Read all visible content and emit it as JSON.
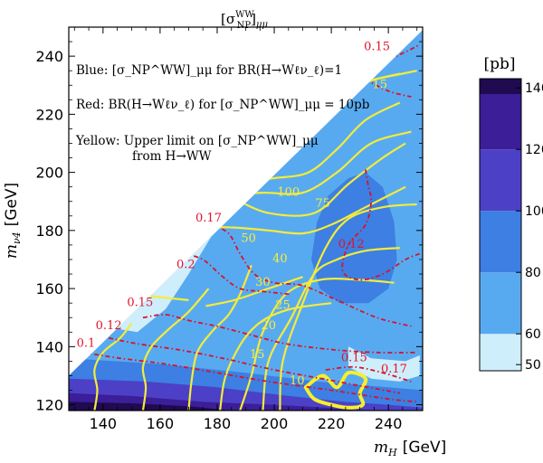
{
  "chart_data": {
    "type": "contour",
    "title": "[σ_NP^WW]_μμ",
    "title_main": "[σ",
    "title_sup": "WW",
    "title_sub": "NP",
    "title_tail": "]",
    "title_tail_sub": "μμ",
    "xlabel": "m_H [GeV]",
    "xlabel_var": "m",
    "xlabel_var_sub": "H",
    "xlabel_unit": "[GeV]",
    "ylabel": "m_ν4 [GeV]",
    "ylabel_var": "m",
    "ylabel_var_sub": "ν4",
    "ylabel_unit": "[GeV]",
    "xlim": [
      128,
      252
    ],
    "ylim": [
      118,
      250
    ],
    "xticks": [
      140,
      160,
      180,
      200,
      220,
      240
    ],
    "yticks": [
      120,
      140,
      160,
      180,
      200,
      220,
      240
    ],
    "colorbar": {
      "title": "[pb]",
      "range": [
        48,
        143
      ],
      "ticks": [
        50,
        60,
        80,
        100,
        120,
        140
      ],
      "bands": [
        {
          "from": 48,
          "to": 60,
          "color": "#cfeefc"
        },
        {
          "from": 60,
          "to": 80,
          "color": "#58aaf0"
        },
        {
          "from": 80,
          "to": 100,
          "color": "#3d7fe2"
        },
        {
          "from": 100,
          "to": 120,
          "color": "#4c40c6"
        },
        {
          "from": 120,
          "to": 138,
          "color": "#3b1e98"
        },
        {
          "from": 138,
          "to": 143,
          "color": "#200a50"
        }
      ]
    },
    "legend": {
      "blue": "Blue: [σ_NP^WW]_μμ for BR(H→Wℓν_ℓ)=1",
      "red": "Red: BR(H→Wℓν_ℓ) for [σ_NP^WW]_μμ = 10pb",
      "yellow_1": "Yellow: Upper limit on [σ_NP^WW]_μμ",
      "yellow_2": "from H→WW"
    },
    "yellow_contour_labels": [
      {
        "text": "100",
        "x": 205,
        "y": 192
      },
      {
        "text": "75",
        "x": 217,
        "y": 188
      },
      {
        "text": "50",
        "x": 191,
        "y": 176
      },
      {
        "text": "40",
        "x": 202,
        "y": 169
      },
      {
        "text": "30",
        "x": 196,
        "y": 161
      },
      {
        "text": "25",
        "x": 203,
        "y": 153
      },
      {
        "text": "20",
        "x": 198,
        "y": 146
      },
      {
        "text": "15",
        "x": 194,
        "y": 136
      },
      {
        "text": "10",
        "x": 208,
        "y": 127
      },
      {
        "text": "15",
        "x": 237,
        "y": 229
      }
    ],
    "red_contour_labels": [
      {
        "text": "0.15",
        "x": 236,
        "y": 242
      },
      {
        "text": "0.12",
        "x": 227,
        "y": 174
      },
      {
        "text": "0.17",
        "x": 177,
        "y": 183
      },
      {
        "text": "0.2",
        "x": 169,
        "y": 167
      },
      {
        "text": "0.15",
        "x": 153,
        "y": 154
      },
      {
        "text": "0.12",
        "x": 142,
        "y": 146
      },
      {
        "text": "0.1",
        "x": 134,
        "y": 140
      },
      {
        "text": "0.15",
        "x": 228,
        "y": 135
      },
      {
        "text": "0.17",
        "x": 242,
        "y": 131
      }
    ],
    "regions": [
      {
        "name": "light-blue-edge",
        "color": "#cfeefc",
        "value_range": [
          48,
          60
        ],
        "points": [
          [
            152,
            145
          ],
          [
            162,
            153
          ],
          [
            170,
            165
          ],
          [
            178,
            178
          ],
          [
            186,
            186
          ],
          [
            190,
            190
          ],
          [
            183,
            196
          ],
          [
            160,
            177
          ],
          [
            145,
            160
          ],
          [
            140,
            152
          ],
          [
            146,
            146
          ]
        ]
      },
      {
        "name": "mid-blue-right",
        "color": "#3d7fe2",
        "value_range": [
          80,
          100
        ],
        "points": [
          [
            215,
            183
          ],
          [
            219,
            192
          ],
          [
            226,
            198
          ],
          [
            232,
            200
          ],
          [
            238,
            195
          ],
          [
            242,
            183
          ],
          [
            243,
            170
          ],
          [
            240,
            160
          ],
          [
            233,
            155
          ],
          [
            223,
            155
          ],
          [
            216,
            160
          ],
          [
            213,
            170
          ]
        ]
      },
      {
        "name": "light-band",
        "color": "#cfeefc",
        "value_range": [
          48,
          60
        ],
        "points": [
          [
            226,
            140
          ],
          [
            234,
            136
          ],
          [
            246,
            135
          ],
          [
            251,
            137
          ],
          [
            251,
            130
          ],
          [
            244,
            128
          ],
          [
            234,
            129
          ],
          [
            226,
            133
          ]
        ]
      },
      {
        "name": "mid-band",
        "color": "#3d7fe2",
        "value_range": [
          80,
          100
        ],
        "points": [
          [
            128,
            136
          ],
          [
            160,
            134
          ],
          [
            190,
            131
          ],
          [
            215,
            128
          ],
          [
            240,
            126
          ],
          [
            252,
            125
          ],
          [
            252,
            118
          ],
          [
            128,
            118
          ]
        ]
      },
      {
        "name": "high-band",
        "color": "#4c40c6",
        "value_range": [
          100,
          120
        ],
        "points": [
          [
            128,
            129
          ],
          [
            155,
            128
          ],
          [
            180,
            126
          ],
          [
            205,
            123
          ],
          [
            225,
            121
          ],
          [
            240,
            120
          ],
          [
            252,
            119
          ],
          [
            252,
            118
          ],
          [
            128,
            118
          ]
        ]
      },
      {
        "name": "peak-band",
        "color": "#3b1e98",
        "value_range": [
          120,
          138
        ],
        "points": [
          [
            128,
            124
          ],
          [
            150,
            123
          ],
          [
            175,
            121
          ],
          [
            200,
            120
          ],
          [
            218,
            119
          ],
          [
            230,
            118
          ],
          [
            128,
            118
          ]
        ]
      },
      {
        "name": "max-band",
        "color": "#200a50",
        "value_range": [
          138,
          143
        ],
        "points": [
          [
            128,
            121
          ],
          [
            150,
            120.5
          ],
          [
            170,
            119.5
          ],
          [
            185,
            118
          ],
          [
            128,
            118
          ]
        ]
      }
    ],
    "yellow_contours": [
      {
        "label": "10",
        "points": [
          [
            137,
            118
          ],
          [
            138,
            125
          ],
          [
            137,
            132
          ],
          [
            140,
            138
          ],
          [
            146,
            143
          ],
          [
            150,
            148
          ]
        ]
      },
      {
        "label": "15",
        "points": [
          [
            154,
            118
          ],
          [
            155,
            126
          ],
          [
            154,
            133
          ],
          [
            157,
            140
          ],
          [
            163,
            146
          ],
          [
            170,
            152
          ],
          [
            177,
            160
          ]
        ]
      },
      {
        "label": "20",
        "points": [
          [
            170,
            118
          ],
          [
            171,
            128
          ],
          [
            173,
            138
          ],
          [
            178,
            145
          ],
          [
            184,
            151
          ],
          [
            188,
            158
          ],
          [
            192,
            168
          ]
        ]
      },
      {
        "label": "25",
        "points": [
          [
            181,
            118
          ],
          [
            183,
            130
          ],
          [
            189,
            142
          ],
          [
            196,
            149
          ],
          [
            206,
            153
          ],
          [
            220,
            155
          ]
        ]
      },
      {
        "label": "30",
        "points": [
          [
            188,
            118
          ],
          [
            192,
            130
          ],
          [
            196,
            145
          ],
          [
            204,
            158
          ],
          [
            216,
            163
          ],
          [
            230,
            163
          ],
          [
            242,
            162
          ]
        ]
      },
      {
        "label": "40",
        "points": [
          [
            196,
            118
          ],
          [
            198,
            135
          ],
          [
            206,
            150
          ],
          [
            214,
            165
          ],
          [
            222,
            170
          ],
          [
            232,
            173
          ],
          [
            244,
            174
          ]
        ]
      },
      {
        "label": "50",
        "points": [
          [
            202,
            118
          ],
          [
            203,
            135
          ],
          [
            210,
            155
          ],
          [
            218,
            174
          ],
          [
            226,
            184
          ],
          [
            238,
            188
          ],
          [
            250,
            189
          ]
        ]
      },
      {
        "label": "75",
        "points": [
          [
            186,
            191
          ],
          [
            198,
            186
          ],
          [
            214,
            186
          ],
          [
            226,
            196
          ],
          [
            238,
            205
          ],
          [
            246,
            210
          ]
        ]
      },
      {
        "label": "100",
        "points": [
          [
            191,
            197
          ],
          [
            200,
            198
          ],
          [
            212,
            200
          ],
          [
            222,
            208
          ],
          [
            232,
            218
          ],
          [
            244,
            224
          ]
        ]
      },
      {
        "label": "",
        "points": [
          [
            162,
            179
          ],
          [
            174,
            181
          ],
          [
            186,
            181
          ],
          [
            198,
            180
          ],
          [
            210,
            179
          ],
          [
            220,
            182
          ],
          [
            232,
            188
          ],
          [
            246,
            195
          ]
        ]
      },
      {
        "label": "",
        "points": [
          [
            172,
            189
          ],
          [
            184,
            192
          ],
          [
            196,
            193
          ],
          [
            210,
            193
          ],
          [
            222,
            200
          ],
          [
            234,
            210
          ],
          [
            248,
            214
          ]
        ]
      },
      {
        "label": "",
        "points": [
          [
            196,
            215
          ],
          [
            206,
            214
          ],
          [
            218,
            220
          ],
          [
            230,
            230
          ],
          [
            244,
            234
          ]
        ]
      },
      {
        "label": "",
        "points": [
          [
            206,
            224
          ],
          [
            216,
            226
          ],
          [
            228,
            236
          ],
          [
            240,
            240
          ]
        ]
      },
      {
        "label": "15",
        "points": [
          [
            221,
            230
          ],
          [
            230,
            231
          ],
          [
            240,
            233
          ],
          [
            250,
            235
          ]
        ]
      },
      {
        "label": "",
        "points": [
          [
            176,
            154
          ],
          [
            186,
            156
          ],
          [
            198,
            160
          ],
          [
            210,
            164
          ]
        ]
      },
      {
        "label": "",
        "points": [
          [
            140,
            156
          ],
          [
            150,
            158
          ],
          [
            160,
            157
          ],
          [
            170,
            156
          ]
        ]
      }
    ],
    "yellow_limit_loop": [
      [
        211,
        126
      ],
      [
        217,
        130
      ],
      [
        222,
        126
      ],
      [
        226,
        131
      ],
      [
        232,
        129
      ],
      [
        230,
        124
      ],
      [
        231,
        120
      ],
      [
        226,
        119
      ],
      [
        220,
        120
      ],
      [
        214,
        122
      ]
    ],
    "red_contours": [
      {
        "label": "0.15",
        "points": [
          [
            229,
            240
          ],
          [
            237,
            238
          ],
          [
            245,
            241
          ],
          [
            251,
            244
          ]
        ]
      },
      {
        "label": "0.15",
        "points": [
          [
            232,
            232
          ],
          [
            240,
            228
          ],
          [
            248,
            226
          ]
        ]
      },
      {
        "label": "0.12",
        "points": [
          [
            232,
            201
          ],
          [
            233,
            195
          ],
          [
            234,
            190
          ],
          [
            232,
            182
          ],
          [
            226,
            175
          ],
          [
            224,
            166
          ],
          [
            230,
            163
          ],
          [
            238,
            165
          ],
          [
            246,
            170
          ],
          [
            251,
            172
          ]
        ]
      },
      {
        "label": "0.17",
        "points": [
          [
            178,
            182
          ],
          [
            184,
            179
          ],
          [
            188,
            172
          ],
          [
            193,
            165
          ],
          [
            200,
            162
          ],
          [
            210,
            161
          ],
          [
            222,
            156
          ],
          [
            236,
            150
          ],
          [
            248,
            147
          ]
        ]
      },
      {
        "label": "0.2",
        "points": [
          [
            168,
            172
          ],
          [
            175,
            170
          ],
          [
            182,
            164
          ],
          [
            188,
            160
          ],
          [
            196,
            159
          ],
          [
            206,
            158
          ]
        ]
      },
      {
        "label": "0.15",
        "points": [
          [
            154,
            150
          ],
          [
            162,
            151
          ],
          [
            170,
            149
          ],
          [
            180,
            147
          ],
          [
            192,
            144
          ],
          [
            204,
            141
          ],
          [
            220,
            139
          ],
          [
            236,
            138
          ],
          [
            250,
            138
          ]
        ]
      },
      {
        "label": "0.12",
        "points": [
          [
            142,
            143
          ],
          [
            152,
            141
          ],
          [
            166,
            139
          ],
          [
            182,
            136
          ],
          [
            200,
            132
          ],
          [
            222,
            128
          ],
          [
            244,
            124
          ]
        ]
      },
      {
        "label": "0.1",
        "points": [
          [
            133,
            138
          ],
          [
            146,
            136
          ],
          [
            162,
            134
          ],
          [
            180,
            131
          ],
          [
            198,
            128
          ],
          [
            220,
            125
          ],
          [
            240,
            122
          ],
          [
            250,
            121
          ]
        ]
      },
      {
        "label": "0.15",
        "points": [
          [
            218,
            132
          ],
          [
            228,
            133
          ],
          [
            238,
            131
          ],
          [
            248,
            128
          ]
        ]
      }
    ]
  }
}
